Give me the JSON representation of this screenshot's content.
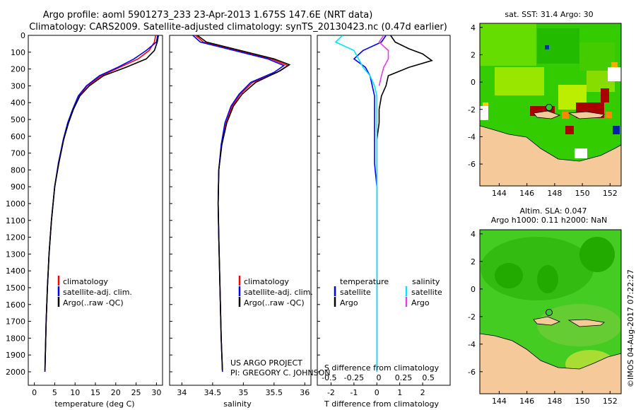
{
  "header": {
    "title_line1": "Argo profile: aoml 5901273_233 23-Apr-2013 1.675S 147.6E (NRT data)",
    "title_line2": "Climatology: CARS2009. Satellite-adjusted climatology: synTS_20130423.nc (0.47d earlier)"
  },
  "colors": {
    "climatology": "#ff0000",
    "satellite": "#0000ff",
    "argo": "#000000",
    "salinity_satellite": "#00e5ff",
    "salinity_argo": "#e040e0",
    "land": "#f5c99a"
  },
  "depth_axis": {
    "ticks": [
      0,
      100,
      200,
      300,
      400,
      500,
      600,
      700,
      800,
      900,
      1000,
      1100,
      1200,
      1300,
      1400,
      1500,
      1600,
      1700,
      1800,
      1900,
      2000
    ],
    "ylim": [
      0,
      2080
    ]
  },
  "chart_data": [
    {
      "type": "line",
      "name": "temperature-profile",
      "xlabel": "temperature (deg C)",
      "xlim": [
        -1.5,
        31.5
      ],
      "xticks": [
        "0",
        "5",
        "10",
        "15",
        "20",
        "25",
        "30"
      ],
      "legend": [
        "climatology",
        "satellite-adj. clim.",
        "Argo(..raw -QC)"
      ],
      "series": [
        {
          "name": "climatology",
          "color": "#ff0000",
          "points": [
            [
              29.8,
              0
            ],
            [
              29.5,
              40
            ],
            [
              28.2,
              90
            ],
            [
              25.5,
              140
            ],
            [
              21,
              190
            ],
            [
              16.5,
              240
            ],
            [
              13,
              300
            ],
            [
              11,
              360
            ],
            [
              9.5,
              440
            ],
            [
              8.3,
              520
            ],
            [
              7.2,
              620
            ],
            [
              6,
              760
            ],
            [
              5,
              900
            ],
            [
              4.2,
              1100
            ],
            [
              3.6,
              1300
            ],
            [
              3.2,
              1500
            ],
            [
              2.9,
              1700
            ],
            [
              2.6,
              2000
            ]
          ]
        },
        {
          "name": "satellite-adj. clim.",
          "color": "#0000ff",
          "points": [
            [
              30.3,
              0
            ],
            [
              30,
              40
            ],
            [
              27.5,
              90
            ],
            [
              24.5,
              140
            ],
            [
              20.5,
              190
            ],
            [
              16,
              240
            ],
            [
              12.8,
              300
            ],
            [
              10.8,
              360
            ],
            [
              9.4,
              440
            ],
            [
              8.2,
              520
            ],
            [
              7.1,
              620
            ],
            [
              5.9,
              760
            ],
            [
              5,
              900
            ],
            [
              4.2,
              1100
            ],
            [
              3.6,
              1300
            ],
            [
              3.2,
              1500
            ],
            [
              2.9,
              1700
            ],
            [
              2.6,
              2000
            ]
          ]
        },
        {
          "name": "Argo(..raw -QC)",
          "color": "#000000",
          "points": [
            [
              30.5,
              0
            ],
            [
              30.2,
              40
            ],
            [
              29.5,
              90
            ],
            [
              27.5,
              140
            ],
            [
              22.5,
              190
            ],
            [
              17,
              240
            ],
            [
              13.5,
              300
            ],
            [
              11.2,
              360
            ],
            [
              9.6,
              440
            ],
            [
              8.4,
              520
            ],
            [
              7.2,
              620
            ],
            [
              6,
              760
            ],
            [
              5,
              900
            ],
            [
              4.2,
              1100
            ],
            [
              3.6,
              1300
            ],
            [
              3.2,
              1500
            ],
            [
              2.9,
              1700
            ],
            [
              2.6,
              1990
            ]
          ]
        }
      ]
    },
    {
      "type": "line",
      "name": "salinity-profile",
      "xlabel": "salinity",
      "xlim": [
        33.8,
        36.1
      ],
      "xticks": [
        "34",
        "34.5",
        "35",
        "35.5",
        "36"
      ],
      "legend": [
        "climatology",
        "satellite-adj. clim.",
        "Argo(..raw -QC)"
      ],
      "series": [
        {
          "name": "climatology",
          "color": "#ff0000",
          "points": [
            [
              34.22,
              0
            ],
            [
              34.35,
              40
            ],
            [
              34.9,
              90
            ],
            [
              35.45,
              140
            ],
            [
              35.72,
              180
            ],
            [
              35.55,
              220
            ],
            [
              35.15,
              280
            ],
            [
              34.95,
              350
            ],
            [
              34.82,
              420
            ],
            [
              34.72,
              520
            ],
            [
              34.65,
              650
            ],
            [
              34.6,
              800
            ],
            [
              34.59,
              1000
            ],
            [
              34.6,
              1200
            ],
            [
              34.62,
              1500
            ],
            [
              34.64,
              1800
            ],
            [
              34.66,
              2000
            ]
          ]
        },
        {
          "name": "satellite-adj. clim.",
          "color": "#0000ff",
          "points": [
            [
              34.18,
              0
            ],
            [
              34.3,
              40
            ],
            [
              34.85,
              90
            ],
            [
              35.4,
              140
            ],
            [
              35.66,
              180
            ],
            [
              35.5,
              220
            ],
            [
              35.12,
              280
            ],
            [
              34.93,
              350
            ],
            [
              34.8,
              420
            ],
            [
              34.7,
              520
            ],
            [
              34.64,
              650
            ],
            [
              34.6,
              800
            ],
            [
              34.59,
              1000
            ],
            [
              34.6,
              1200
            ],
            [
              34.62,
              1500
            ],
            [
              34.64,
              1800
            ],
            [
              34.66,
              2000
            ]
          ]
        },
        {
          "name": "Argo(..raw -QC)",
          "color": "#000000",
          "points": [
            [
              34.25,
              0
            ],
            [
              34.4,
              40
            ],
            [
              34.95,
              90
            ],
            [
              35.5,
              140
            ],
            [
              35.75,
              175
            ],
            [
              35.6,
              210
            ],
            [
              35.2,
              280
            ],
            [
              34.98,
              350
            ],
            [
              34.84,
              420
            ],
            [
              34.73,
              520
            ],
            [
              34.65,
              650
            ],
            [
              34.6,
              800
            ],
            [
              34.59,
              1000
            ],
            [
              34.6,
              1200
            ],
            [
              34.62,
              1500
            ],
            [
              34.64,
              1800
            ],
            [
              34.66,
              1990
            ]
          ]
        }
      ]
    },
    {
      "type": "line",
      "name": "difference-profile",
      "top_xlabel": "S difference from climatology",
      "top_xticks": [
        "-0.5",
        "-0.25",
        "0",
        "0.25",
        "0.5"
      ],
      "xlabel": "T difference from climatology",
      "xlim": [
        -2.6,
        3.2
      ],
      "xticks": [
        "-2",
        "-1",
        "0",
        "1",
        "2"
      ],
      "legend_headers": [
        "temperature",
        "salinity"
      ],
      "legend": [
        "satellite",
        "Argo",
        "satellite",
        "Argo"
      ],
      "series": [
        {
          "name": "temperature satellite",
          "color": "#0000ff",
          "points": [
            [
              0.4,
              0
            ],
            [
              0.2,
              40
            ],
            [
              -0.6,
              90
            ],
            [
              -1,
              140
            ],
            [
              -0.5,
              190
            ],
            [
              -0.3,
              240
            ],
            [
              -0.2,
              300
            ],
            [
              -0.1,
              360
            ],
            [
              -0.1,
              440
            ],
            [
              -0.1,
              520
            ],
            [
              -0.1,
              620
            ],
            [
              -0.1,
              760
            ],
            [
              0,
              900
            ],
            [
              0,
              1100
            ],
            [
              0,
              1300
            ],
            [
              0,
              1500
            ],
            [
              0,
              1700
            ],
            [
              0,
              2000
            ]
          ]
        },
        {
          "name": "temperature Argo",
          "color": "#000000",
          "points": [
            [
              0.6,
              0
            ],
            [
              0.8,
              40
            ],
            [
              1.4,
              80
            ],
            [
              2,
              110
            ],
            [
              2.4,
              150
            ],
            [
              1.4,
              190
            ],
            [
              0.5,
              240
            ],
            [
              0.4,
              300
            ],
            [
              0.2,
              360
            ],
            [
              0.1,
              440
            ],
            [
              0.1,
              520
            ],
            [
              0,
              620
            ],
            [
              0,
              760
            ],
            [
              0,
              900
            ],
            [
              0,
              1100
            ],
            [
              0,
              1300
            ],
            [
              0,
              1500
            ],
            [
              0,
              1700
            ],
            [
              0,
              1990
            ]
          ]
        },
        {
          "name": "salinity satellite",
          "color": "#00e5ff",
          "points": [
            [
              -1.5,
              0
            ],
            [
              -1.8,
              40
            ],
            [
              -1.0,
              90
            ],
            [
              -0.8,
              140
            ],
            [
              -0.6,
              190
            ],
            [
              -0.3,
              240
            ],
            [
              -0.1,
              300
            ],
            [
              0,
              360
            ],
            [
              0,
              440
            ],
            [
              0,
              520
            ],
            [
              0,
              620
            ],
            [
              0,
              760
            ],
            [
              0,
              900
            ],
            [
              0,
              1100
            ],
            [
              0,
              1300
            ],
            [
              0,
              1500
            ],
            [
              0,
              1700
            ],
            [
              0,
              2000
            ]
          ]
        },
        {
          "name": "salinity Argo",
          "color": "#e040e0",
          "points": [
            [
              0.3,
              0
            ],
            [
              0.1,
              40
            ],
            [
              0.5,
              90
            ],
            [
              0.5,
              140
            ],
            [
              0.3,
              190
            ],
            [
              0.2,
              240
            ],
            [
              0.1,
              300
            ]
          ]
        }
      ]
    },
    {
      "type": "heatmap",
      "name": "sst-map",
      "title": "sat. SST: 31.4  Argo: 30",
      "xticks": [
        "144",
        "146",
        "148",
        "150",
        "152"
      ],
      "yticks": [
        "4",
        "2",
        "0",
        "-2",
        "-4",
        "-6"
      ]
    },
    {
      "type": "heatmap",
      "name": "sla-map",
      "title_line1": "Altim. SLA: 0.047",
      "title_line2": "Argo h1000: 0.11  h2000: NaN",
      "xticks": [
        "144",
        "146",
        "148",
        "150",
        "152"
      ],
      "yticks": [
        "4",
        "2",
        "0",
        "-2",
        "-4",
        "-6"
      ]
    }
  ],
  "footer": {
    "credit_line1": "US ARGO PROJECT",
    "credit_line2": "PI: GREGORY C. JOHNSON",
    "imos_stamp": "©IMOS 04-Aug-2017 07:22:27"
  }
}
